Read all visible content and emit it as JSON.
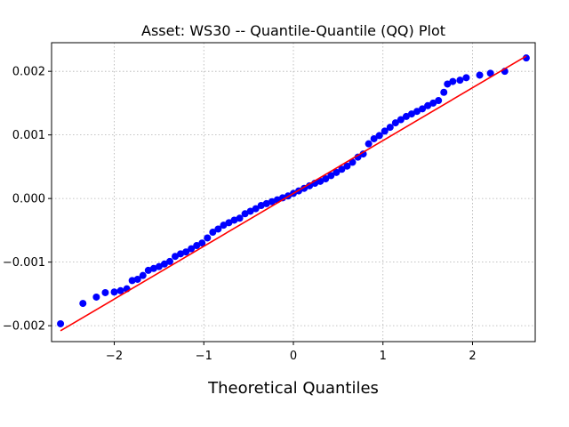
{
  "chart_data": {
    "type": "scatter",
    "title": "Asset: WS30 -- Quantile-Quantile (QQ) Plot",
    "xlabel": "Theoretical Quantiles",
    "ylabel": "",
    "xlim": [
      -2.7,
      2.7
    ],
    "ylim": [
      -0.00225,
      0.00245
    ],
    "x_ticks": [
      -2,
      -1,
      0,
      1,
      2
    ],
    "x_tick_labels": [
      "−2",
      "−1",
      "0",
      "1",
      "2"
    ],
    "y_ticks": [
      -0.002,
      -0.001,
      0.0,
      0.001,
      0.002
    ],
    "y_tick_labels": [
      "−0.002",
      "−0.001",
      "0.000",
      "0.001",
      "0.002"
    ],
    "grid": true,
    "legend": "none",
    "colors": {
      "points": "#0000ff",
      "line": "#ff0000",
      "grid": "#b0b0b0"
    },
    "reference_line": {
      "x": [
        -2.6,
        2.6
      ],
      "y": [
        -0.00208,
        0.00224
      ]
    },
    "series": [
      {
        "x": [
          -2.6,
          -2.35,
          -2.2,
          -2.1,
          -2.0,
          -1.93,
          -1.86,
          -1.8,
          -1.74,
          -1.68,
          -1.62,
          -1.56,
          -1.5,
          -1.44,
          -1.38,
          -1.32,
          -1.26,
          -1.2,
          -1.14,
          -1.08,
          -1.02,
          -0.96,
          -0.9,
          -0.84,
          -0.78,
          -0.72,
          -0.66,
          -0.6,
          -0.54,
          -0.48,
          -0.42,
          -0.36,
          -0.3,
          -0.24,
          -0.18,
          -0.12,
          -0.06,
          0.0,
          0.06,
          0.12,
          0.18,
          0.24,
          0.3,
          0.36,
          0.42,
          0.48,
          0.54,
          0.6,
          0.66,
          0.72,
          0.78,
          0.84,
          0.9,
          0.96,
          1.02,
          1.08,
          1.14,
          1.2,
          1.26,
          1.32,
          1.38,
          1.44,
          1.5,
          1.56,
          1.62,
          1.68,
          1.72,
          1.78,
          1.86,
          1.93,
          2.08,
          2.2,
          2.36,
          2.6
        ],
        "y": [
          -0.00197,
          -0.00165,
          -0.00155,
          -0.00148,
          -0.00147,
          -0.00145,
          -0.00142,
          -0.00129,
          -0.00127,
          -0.00121,
          -0.00113,
          -0.0011,
          -0.00107,
          -0.00103,
          -0.00099,
          -0.00091,
          -0.00087,
          -0.00084,
          -0.00079,
          -0.00074,
          -0.0007,
          -0.00062,
          -0.00053,
          -0.00048,
          -0.00042,
          -0.00038,
          -0.00034,
          -0.00031,
          -0.00024,
          -0.0002,
          -0.00016,
          -0.00011,
          -8e-05,
          -5e-05,
          -2e-05,
          1e-05,
          4e-05,
          8e-05,
          0.00012,
          0.00016,
          0.0002,
          0.00024,
          0.00027,
          0.00031,
          0.00036,
          0.00041,
          0.00046,
          0.00051,
          0.00057,
          0.00065,
          0.0007,
          0.00086,
          0.00094,
          0.00099,
          0.00106,
          0.00112,
          0.00119,
          0.00124,
          0.00129,
          0.00133,
          0.00137,
          0.00141,
          0.00146,
          0.0015,
          0.00154,
          0.00167,
          0.0018,
          0.00184,
          0.00186,
          0.0019,
          0.00194,
          0.00197,
          0.002,
          0.00221
        ]
      }
    ]
  }
}
